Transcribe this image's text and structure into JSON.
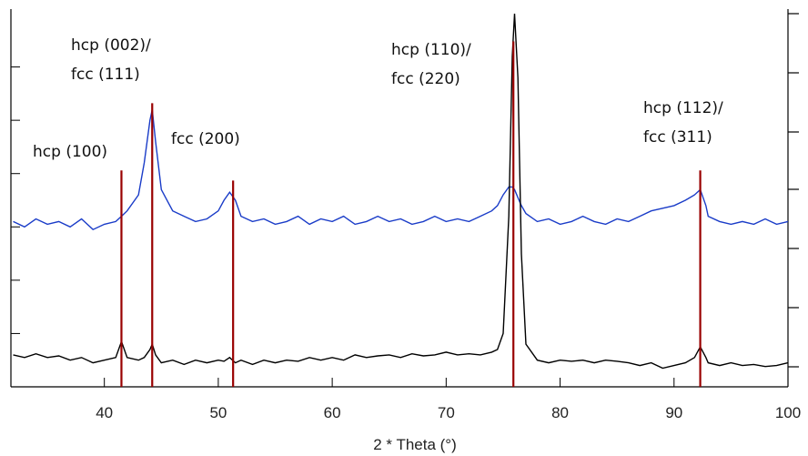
{
  "chart_data": {
    "type": "line",
    "xlabel": "2 * Theta (°)",
    "x": [
      32,
      33,
      34,
      35,
      36,
      37,
      38,
      39,
      40,
      41,
      41.5,
      42,
      43,
      43.5,
      44,
      44.2,
      44.5,
      45,
      46,
      47,
      48,
      49,
      50,
      50.5,
      51,
      51.5,
      52,
      53,
      54,
      55,
      56,
      57,
      58,
      59,
      60,
      61,
      62,
      63,
      64,
      65,
      66,
      67,
      68,
      69,
      70,
      71,
      72,
      73,
      74,
      74.5,
      75,
      75.5,
      75.8,
      76,
      76.3,
      76.6,
      77,
      78,
      79,
      80,
      81,
      82,
      83,
      84,
      85,
      86,
      87,
      88,
      89,
      90,
      91,
      91.8,
      92.3,
      92.8,
      93,
      94,
      95,
      96,
      97,
      98,
      99,
      100
    ],
    "series": [
      {
        "color": "#1a3cc8",
        "values": [
          3.1,
          3.0,
          3.15,
          3.05,
          3.1,
          3.0,
          3.15,
          2.95,
          3.05,
          3.1,
          3.2,
          3.3,
          3.6,
          4.2,
          5.0,
          5.2,
          4.6,
          3.7,
          3.3,
          3.2,
          3.1,
          3.15,
          3.3,
          3.5,
          3.65,
          3.5,
          3.2,
          3.1,
          3.15,
          3.05,
          3.1,
          3.2,
          3.05,
          3.15,
          3.1,
          3.2,
          3.05,
          3.1,
          3.2,
          3.1,
          3.15,
          3.05,
          3.1,
          3.2,
          3.1,
          3.15,
          3.1,
          3.2,
          3.3,
          3.4,
          3.6,
          3.75,
          3.75,
          3.7,
          3.55,
          3.4,
          3.25,
          3.1,
          3.15,
          3.05,
          3.1,
          3.2,
          3.1,
          3.05,
          3.15,
          3.1,
          3.2,
          3.3,
          3.35,
          3.4,
          3.5,
          3.6,
          3.7,
          3.4,
          3.2,
          3.1,
          3.05,
          3.1,
          3.05,
          3.15,
          3.05,
          3.1
        ]
      },
      {
        "color": "#000000",
        "values": [
          0.6,
          0.55,
          0.62,
          0.55,
          0.58,
          0.5,
          0.55,
          0.45,
          0.5,
          0.55,
          0.85,
          0.55,
          0.5,
          0.55,
          0.7,
          0.8,
          0.6,
          0.45,
          0.5,
          0.42,
          0.5,
          0.45,
          0.5,
          0.48,
          0.55,
          0.45,
          0.5,
          0.42,
          0.5,
          0.45,
          0.5,
          0.48,
          0.55,
          0.5,
          0.55,
          0.5,
          0.6,
          0.55,
          0.58,
          0.6,
          0.55,
          0.62,
          0.58,
          0.6,
          0.65,
          0.6,
          0.62,
          0.6,
          0.65,
          0.7,
          1.0,
          3.2,
          6.2,
          7,
          5.8,
          2.5,
          0.8,
          0.5,
          0.45,
          0.5,
          0.48,
          0.5,
          0.45,
          0.5,
          0.48,
          0.45,
          0.4,
          0.45,
          0.35,
          0.4,
          0.45,
          0.55,
          0.75,
          0.55,
          0.45,
          0.4,
          0.45,
          0.4,
          0.42,
          0.38,
          0.4,
          0.45
        ]
      }
    ],
    "references": {
      "color": "#990000",
      "x": [
        41.5,
        44.2,
        51.3,
        75.9,
        92.3
      ],
      "heights": [
        4.06,
        5.32,
        3.87,
        6.48,
        4.06
      ]
    },
    "annotations": [
      [
        "hcp (100)"
      ],
      [
        "hcp (002)/",
        "fcc (111)"
      ],
      [
        "fcc (200)"
      ],
      [
        "hcp (110)/",
        "fcc (220)"
      ],
      [
        "hcp (112)/",
        "fcc (311)"
      ]
    ],
    "xlim": [
      31.8,
      100
    ],
    "xticks": [
      40,
      50,
      60,
      70,
      80,
      90,
      100
    ],
    "ylim": [
      0,
      7
    ],
    "yticks": [
      1,
      2,
      3,
      4,
      5,
      6
    ]
  }
}
